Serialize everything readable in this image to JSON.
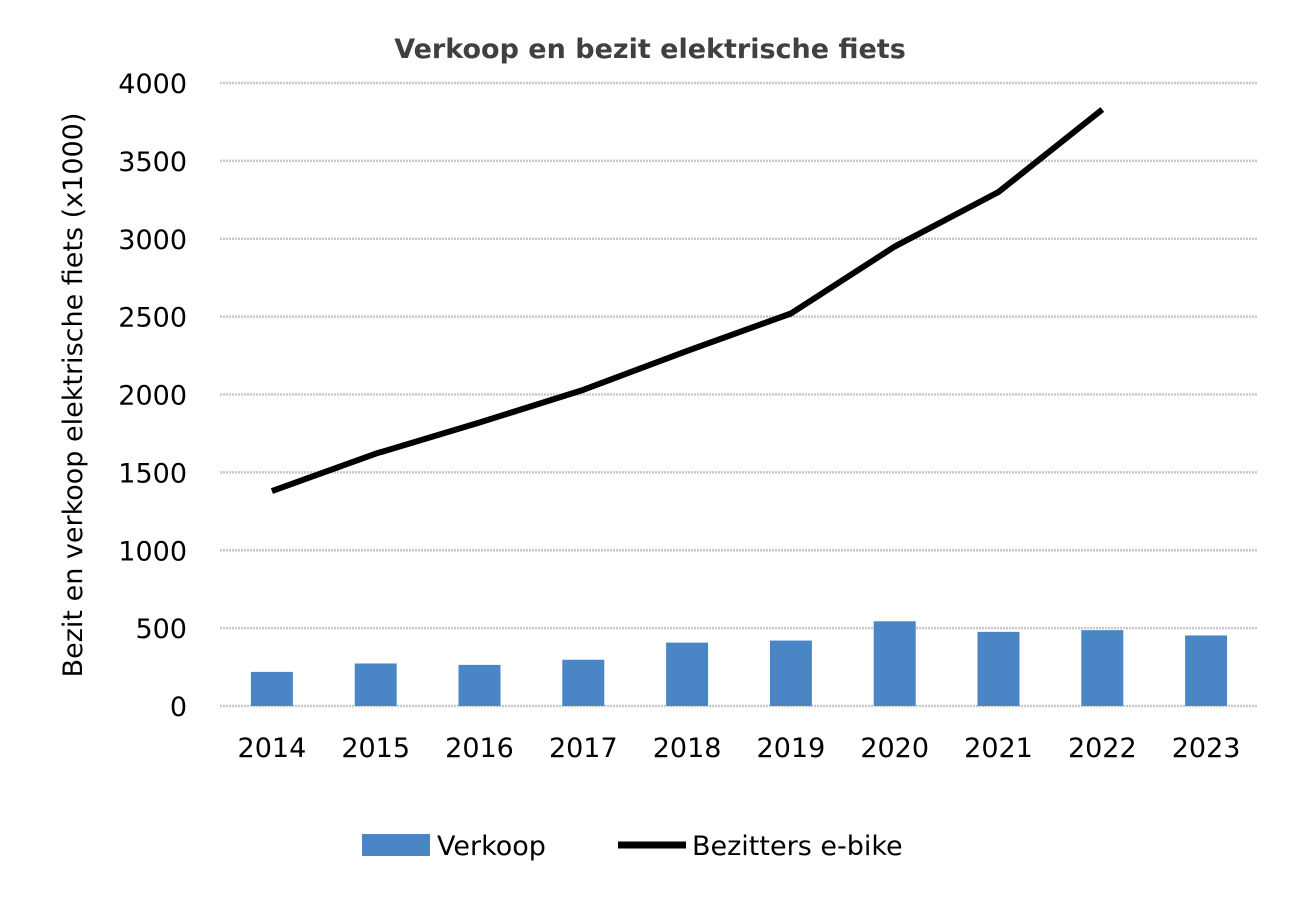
{
  "chart_data": {
    "type": "bar+line",
    "title": "Verkoop en bezit elektrische fiets",
    "xlabel": "",
    "ylabel": "Bezit en verkoop elektrische fiets (x1000)",
    "ylim": [
      0,
      4000
    ],
    "yticks": [
      0,
      500,
      1000,
      1500,
      2000,
      2500,
      3000,
      3500,
      4000
    ],
    "categories": [
      "2014",
      "2015",
      "2016",
      "2017",
      "2018",
      "2019",
      "2020",
      "2021",
      "2022",
      "2023"
    ],
    "grid": true,
    "legend_position": "bottom",
    "series": [
      {
        "name": "Verkoop",
        "type": "bar",
        "color": "#4a86c6",
        "values": [
          219,
          273,
          264,
          297,
          407,
          420,
          544,
          476,
          487,
          453
        ]
      },
      {
        "name": "Bezitters e-bike",
        "type": "line",
        "color": "#000000",
        "values": [
          1380,
          1620,
          1820,
          2030,
          2280,
          2520,
          2950,
          3300,
          3830,
          null
        ]
      }
    ]
  }
}
